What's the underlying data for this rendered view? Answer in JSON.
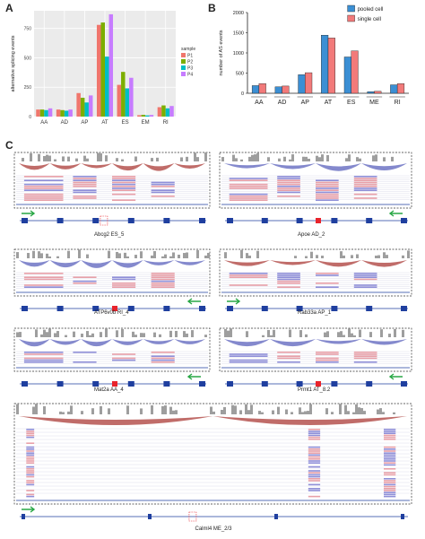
{
  "panels": {
    "a": "A",
    "b": "B",
    "c": "C"
  },
  "chart_data": [
    {
      "type": "bar",
      "ylabel": "alternative splicing events",
      "categories": [
        "AA",
        "AD",
        "AP",
        "AT",
        "ES",
        "EM",
        "RI"
      ],
      "ylim": [
        0,
        900
      ],
      "yticks": [
        0,
        250,
        500,
        750
      ],
      "legend_title": "sample",
      "legend_position": "right",
      "grid": true,
      "series": [
        {
          "name": "P1",
          "color": "#f0766c",
          "values": [
            60,
            60,
            200,
            780,
            270,
            12,
            80
          ]
        },
        {
          "name": "P2",
          "color": "#7cae00",
          "values": [
            60,
            55,
            160,
            800,
            380,
            15,
            95
          ]
        },
        {
          "name": "P3",
          "color": "#00bfc4",
          "values": [
            55,
            50,
            120,
            510,
            240,
            10,
            70
          ]
        },
        {
          "name": "P4",
          "color": "#c77cff",
          "values": [
            70,
            60,
            180,
            870,
            330,
            14,
            90
          ]
        }
      ]
    },
    {
      "type": "bar",
      "ylabel": "number of AS events",
      "categories": [
        "AA",
        "AD",
        "AP",
        "AT",
        "ES",
        "ME",
        "RI"
      ],
      "ylim": [
        0,
        2000
      ],
      "yticks": [
        0,
        500,
        1000,
        1500,
        2000
      ],
      "legend_position": "top-right",
      "grid": false,
      "series": [
        {
          "name": "pooled cell",
          "color": "#3b8fd4",
          "values": [
            190,
            160,
            460,
            1440,
            900,
            40,
            210
          ]
        },
        {
          "name": "single cell",
          "color": "#f27a7a",
          "values": [
            240,
            180,
            510,
            1370,
            1050,
            50,
            240
          ]
        }
      ]
    }
  ],
  "tracks": [
    {
      "gene": "Abcg2 ES_5",
      "arrow": "right",
      "highlight": "box"
    },
    {
      "gene": "Apoe AD_2",
      "arrow": "left",
      "highlight": "red"
    },
    {
      "gene": "ATP6v0b RI_4",
      "arrow": "left",
      "highlight": "red"
    },
    {
      "gene": "Rab33a AP_1",
      "arrow": "right",
      "highlight": "none"
    },
    {
      "gene": "Mat2a AA_4",
      "arrow": "left",
      "highlight": "red"
    },
    {
      "gene": "Prmt1 AT_8.2",
      "arrow": "left",
      "highlight": "red"
    },
    {
      "gene": "Calml4 ME_2/3",
      "arrow": "right",
      "highlight": "box"
    }
  ],
  "colors": {
    "coverage": "#9e9e9e",
    "arc_inclusion": "#b5524f",
    "arc_skip": "#6f74c4",
    "read_pink": "#e8a0a8",
    "read_blue": "#8f8fd8",
    "exon": "#1f3f9f",
    "highlight": "#e8232b",
    "arrow": "#28a745"
  }
}
